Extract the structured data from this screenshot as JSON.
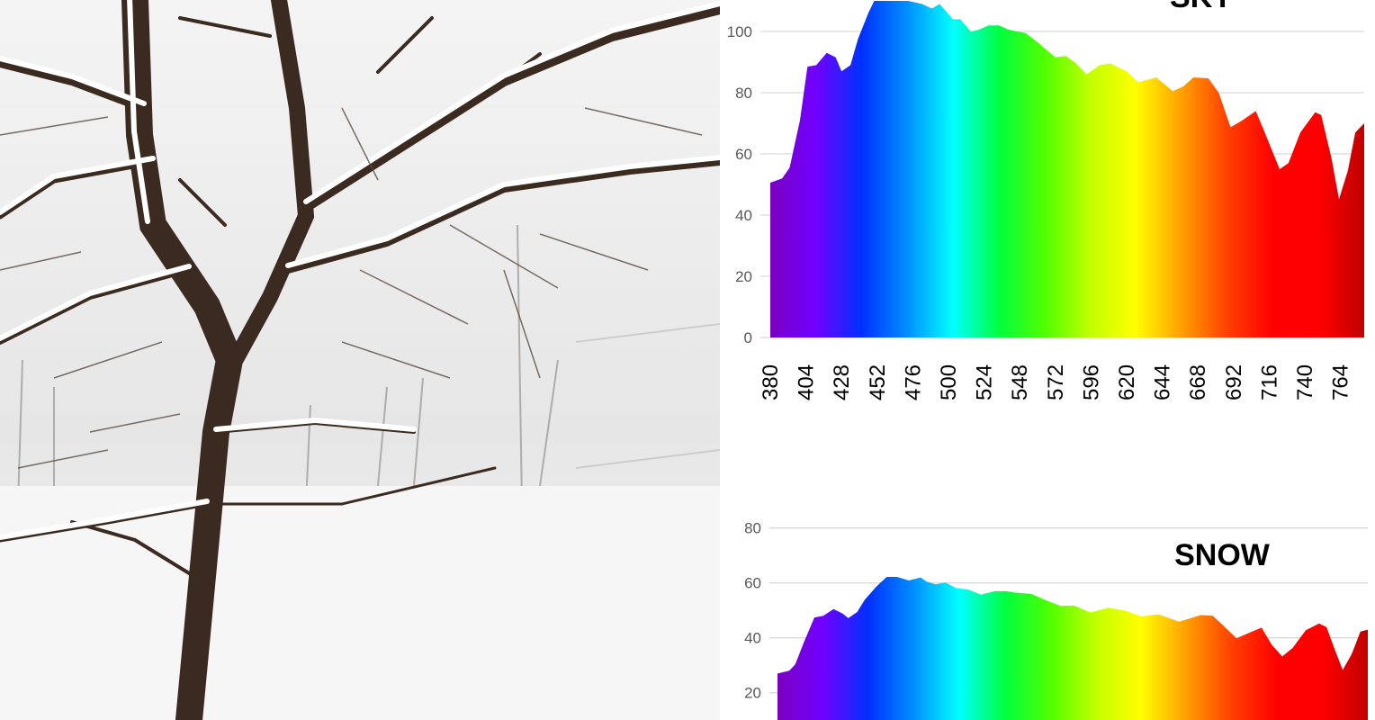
{
  "chart_data": [
    {
      "type": "area",
      "title": "SKY",
      "xlabel": "",
      "ylabel": "",
      "x_tick_labels": [
        "380",
        "404",
        "428",
        "452",
        "476",
        "500",
        "524",
        "548",
        "572",
        "596",
        "620",
        "644",
        "668",
        "692",
        "716",
        "740",
        "764"
      ],
      "y_tick_labels": [
        "0",
        "20",
        "40",
        "60",
        "80",
        "100"
      ],
      "xlim": [
        380,
        780
      ],
      "ylim": [
        0,
        110
      ],
      "grid": true,
      "fill": "visible-spectrum gradient",
      "x": [
        380,
        388,
        393,
        400,
        405,
        411,
        418,
        424,
        428,
        434,
        439,
        446,
        450,
        473,
        482,
        489,
        494,
        503,
        508,
        515,
        520,
        527,
        534,
        541,
        552,
        560,
        572,
        579,
        586,
        593,
        602,
        609,
        620,
        628,
        640,
        651,
        658,
        665,
        675,
        682,
        690,
        698,
        707,
        713,
        723,
        729,
        737,
        747,
        751,
        758,
        763,
        769,
        774,
        780
      ],
      "y": [
        50.6,
        52,
        55.5,
        71,
        88.5,
        89,
        93,
        91.6,
        87,
        89,
        97.5,
        106,
        110,
        110,
        109,
        107.5,
        109,
        104,
        104,
        100,
        100.5,
        102,
        102,
        100.5,
        99.5,
        96.5,
        91.6,
        92,
        89.6,
        86,
        89,
        89.6,
        87,
        83.4,
        85,
        80.5,
        82,
        85,
        84.7,
        80,
        68.7,
        71,
        74,
        67,
        55,
        57,
        67,
        73.6,
        72.7,
        58.5,
        45.2,
        54.5,
        67,
        70
      ]
    },
    {
      "type": "area",
      "title": "SNOW",
      "xlabel": "",
      "ylabel": "",
      "y_tick_labels": [
        "20",
        "40",
        "60",
        "80"
      ],
      "xlim": [
        380,
        780
      ],
      "ylim": [
        0,
        80
      ],
      "grid": true,
      "fill": "visible-spectrum gradient",
      "x": [
        380,
        388,
        392,
        398,
        405,
        411,
        418,
        424,
        428,
        434,
        439,
        447,
        454,
        461,
        469,
        477,
        481,
        487,
        494,
        501,
        509,
        518,
        527,
        535,
        541,
        552,
        564,
        572,
        581,
        592,
        604,
        615,
        627,
        638,
        652,
        667,
        675,
        682,
        691,
        699,
        708,
        715,
        722,
        729,
        738,
        747,
        752,
        758,
        763,
        769,
        775,
        780
      ],
      "y": [
        27,
        28,
        30.3,
        38.5,
        47.4,
        48,
        50.5,
        48.9,
        47.2,
        49.4,
        53.8,
        58.7,
        62.2,
        62.2,
        60.9,
        62,
        60.5,
        59.5,
        60.1,
        58.1,
        57.6,
        55.7,
        57,
        57,
        56.5,
        56,
        53.2,
        51.6,
        51.8,
        49.2,
        51,
        50,
        47.8,
        48.6,
        45.9,
        48.3,
        48,
        44.5,
        39.8,
        41.7,
        43.7,
        37.4,
        33.2,
        36.3,
        42.8,
        45.2,
        43.9,
        35.2,
        28.3,
        34,
        42.3,
        43
      ]
    }
  ],
  "colors": {
    "gridline": "#d9d9d9",
    "spectrum": [
      "#7a00c0",
      "#7000ff",
      "#0030ff",
      "#0090ff",
      "#00ffff",
      "#00ff40",
      "#50ff00",
      "#c0ff00",
      "#ffff00",
      "#ffa000",
      "#ff4000",
      "#ff0000",
      "#ff0000",
      "#c00000"
    ]
  }
}
